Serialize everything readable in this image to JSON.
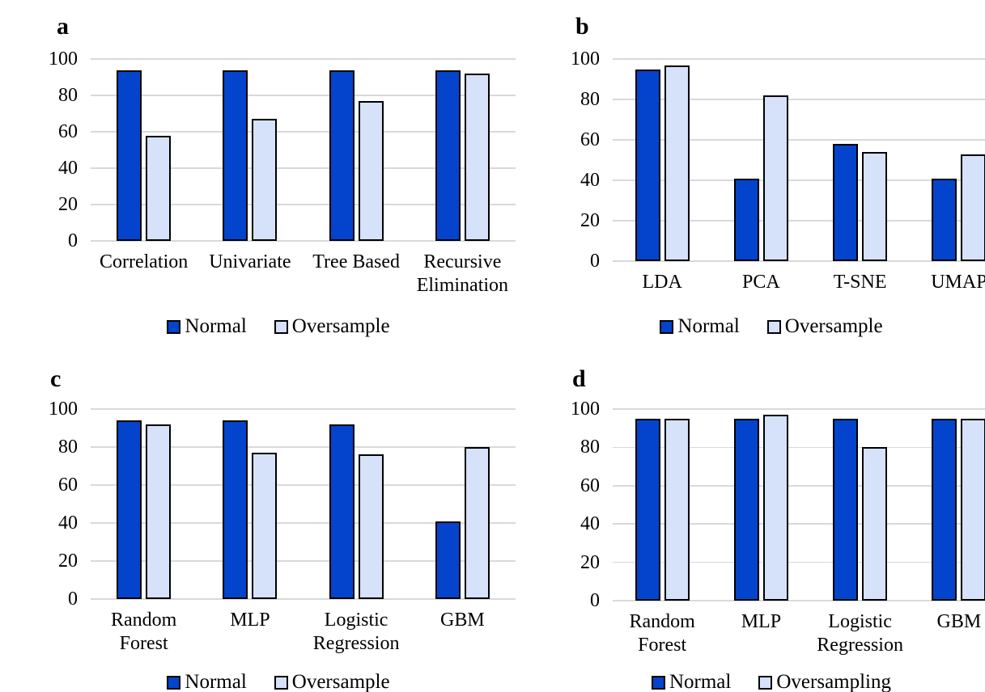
{
  "colors": {
    "normal": "#0444CC",
    "oversample": "#D6E2FA",
    "bar_border": "#000000",
    "gridline": "#D9D9D9",
    "background": "#FFFFFF",
    "text": "#000000"
  },
  "chart_data": [
    {
      "type": "bar",
      "panel_label": "a",
      "categories": [
        "Correlation",
        "Univariate",
        "Tree Based",
        "Recursive\nElimination"
      ],
      "series": [
        {
          "name": "Normal",
          "values": [
            94,
            94,
            94,
            94
          ]
        },
        {
          "name": "Oversample",
          "values": [
            58,
            67,
            77,
            92
          ]
        }
      ],
      "title": "",
      "xlabel": "",
      "ylabel": "",
      "ylim": [
        0,
        100
      ],
      "yticks": [
        0,
        20,
        40,
        60,
        80,
        100
      ],
      "grid": true,
      "legend_position": "bottom"
    },
    {
      "type": "bar",
      "panel_label": "b",
      "categories": [
        "LDA",
        "PCA",
        "T-SNE",
        "UMAP"
      ],
      "series": [
        {
          "name": "Normal",
          "values": [
            95,
            41,
            58,
            41
          ]
        },
        {
          "name": "Oversample",
          "values": [
            97,
            82,
            54,
            53
          ]
        }
      ],
      "title": "",
      "xlabel": "",
      "ylabel": "",
      "ylim": [
        0,
        100
      ],
      "yticks": [
        0,
        20,
        40,
        60,
        80,
        100
      ],
      "grid": true,
      "legend_position": "bottom"
    },
    {
      "type": "bar",
      "panel_label": "c",
      "categories": [
        "Random\nForest",
        "MLP",
        "Logistic\nRegression",
        "GBM"
      ],
      "series": [
        {
          "name": "Normal",
          "values": [
            94,
            94,
            92,
            41
          ]
        },
        {
          "name": "Oversample",
          "values": [
            92,
            77,
            76,
            80
          ]
        }
      ],
      "title": "",
      "xlabel": "",
      "ylabel": "",
      "ylim": [
        0,
        100
      ],
      "yticks": [
        0,
        20,
        40,
        60,
        80,
        100
      ],
      "grid": true,
      "legend_position": "bottom"
    },
    {
      "type": "bar",
      "panel_label": "d",
      "categories": [
        "Random\nForest",
        "MLP",
        "Logistic\nRegression",
        "GBM"
      ],
      "series": [
        {
          "name": "Normal",
          "values": [
            95,
            95,
            95,
            95
          ]
        },
        {
          "name": "Oversampling",
          "values": [
            95,
            97,
            80,
            95
          ]
        }
      ],
      "title": "",
      "xlabel": "",
      "ylabel": "",
      "ylim": [
        0,
        100
      ],
      "yticks": [
        0,
        20,
        40,
        60,
        80,
        100
      ],
      "grid": true,
      "legend_position": "bottom"
    }
  ]
}
